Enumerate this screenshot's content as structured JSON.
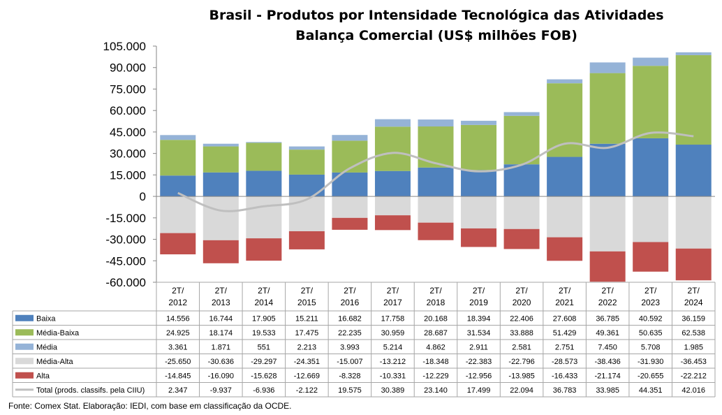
{
  "chart_data": {
    "type": "bar",
    "title": "Brasil - Produtos por Intensidade Tecnológica das Atividades",
    "subtitle": "Balança Comercial (US$ milhões FOB)",
    "categories": [
      [
        "2T/",
        "2012"
      ],
      [
        "2T/",
        "2013"
      ],
      [
        "2T/",
        "2014"
      ],
      [
        "2T/",
        "2015"
      ],
      [
        "2T/",
        "2016"
      ],
      [
        "2T/",
        "2017"
      ],
      [
        "2T/",
        "2018"
      ],
      [
        "2T/",
        "2019"
      ],
      [
        "2T/",
        "2020"
      ],
      [
        "2T/",
        "2021"
      ],
      [
        "2T/",
        "2022"
      ],
      [
        "2T/",
        "2023"
      ],
      [
        "2T/",
        "2024"
      ]
    ],
    "ylim": [
      -60000,
      105000
    ],
    "ytick_step": 15000,
    "yticks": [
      "105.000",
      "90.000",
      "75.000",
      "60.000",
      "45.000",
      "30.000",
      "15.000",
      "0",
      "-15.000",
      "-30.000",
      "-45.000",
      "-60.000"
    ],
    "grid": false,
    "legend": "table-rows-below",
    "series": [
      {
        "name": "Baixa",
        "kind": "bar",
        "color": "#4f81bd",
        "values": [
          14556,
          16744,
          17905,
          15211,
          16682,
          17758,
          20168,
          18394,
          22406,
          27608,
          36785,
          40592,
          36159
        ],
        "labels": [
          "14.556",
          "16.744",
          "17.905",
          "15.211",
          "16.682",
          "17.758",
          "20.168",
          "18.394",
          "22.406",
          "27.608",
          "36.785",
          "40.592",
          "36.159"
        ]
      },
      {
        "name": "Média-Baixa",
        "kind": "bar",
        "color": "#9bbb59",
        "values": [
          24925,
          18174,
          19533,
          17475,
          22235,
          30959,
          28687,
          31534,
          33888,
          51429,
          49361,
          50635,
          62538
        ],
        "labels": [
          "24.925",
          "18.174",
          "19.533",
          "17.475",
          "22.235",
          "30.959",
          "28.687",
          "31.534",
          "33.888",
          "51.429",
          "49.361",
          "50.635",
          "62.538"
        ]
      },
      {
        "name": "Média",
        "kind": "bar",
        "color": "#95b3d7",
        "values": [
          3361,
          1871,
          551,
          2213,
          3993,
          5214,
          4862,
          2911,
          2581,
          2751,
          7450,
          5708,
          1985
        ],
        "labels": [
          "3.361",
          "1.871",
          "551",
          "2.213",
          "3.993",
          "5.214",
          "4.862",
          "2.911",
          "2.581",
          "2.751",
          "7.450",
          "5.708",
          "1.985"
        ]
      },
      {
        "name": "Média-Alta",
        "kind": "bar",
        "color": "#d9d9d9",
        "values": [
          -25650,
          -30636,
          -29297,
          -24351,
          -15007,
          -13212,
          -18348,
          -22383,
          -22796,
          -28573,
          -38436,
          -31930,
          -36453
        ],
        "labels": [
          "-25.650",
          "-30.636",
          "-29.297",
          "-24.351",
          "-15.007",
          "-13.212",
          "-18.348",
          "-22.383",
          "-22.796",
          "-28.573",
          "-38.436",
          "-31.930",
          "-36.453"
        ]
      },
      {
        "name": "Alta",
        "kind": "bar",
        "color": "#c0504d",
        "values": [
          -14845,
          -16090,
          -15628,
          -12669,
          -8328,
          -10331,
          -12229,
          -12956,
          -13985,
          -16433,
          -21174,
          -20655,
          -22212
        ],
        "labels": [
          "-14.845",
          "-16.090",
          "-15.628",
          "-12.669",
          "-8.328",
          "-10.331",
          "-12.229",
          "-12.956",
          "-13.985",
          "-16.433",
          "-21.174",
          "-20.655",
          "-22.212"
        ]
      },
      {
        "name": "Total (prods. classifs. pela CIIU)",
        "kind": "line",
        "color": "#bfbfbf",
        "values": [
          2347,
          -9937,
          -6936,
          -2122,
          19575,
          30389,
          23140,
          17499,
          22094,
          36783,
          33985,
          44351,
          42016
        ],
        "labels": [
          "2.347",
          "-9.937",
          "-6.936",
          "-2.122",
          "19.575",
          "30.389",
          "23.140",
          "17.499",
          "22.094",
          "36.783",
          "33.985",
          "44.351",
          "42.016"
        ]
      }
    ],
    "source": "Fonte: Comex Stat. Elaboração: IEDI, com base em classificação da OCDE."
  }
}
